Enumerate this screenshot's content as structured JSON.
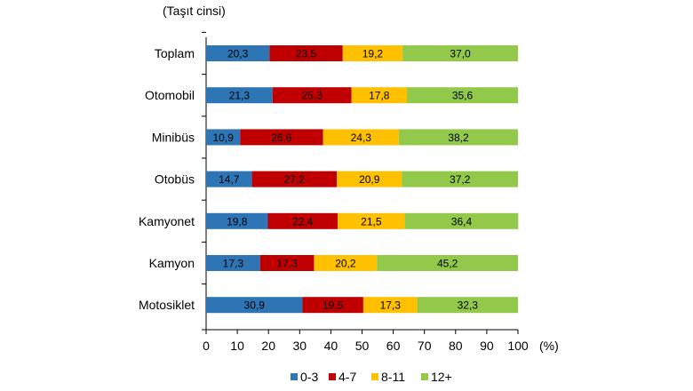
{
  "chart_data": {
    "type": "bar",
    "orientation": "horizontal",
    "stacked": true,
    "title": "",
    "ylabel": "(Taşıt cinsi)",
    "xunit": "(%)",
    "xlim": [
      0,
      100
    ],
    "xticks": [
      "0",
      "10",
      "20",
      "30",
      "40",
      "50",
      "60",
      "70",
      "80",
      "90",
      "100"
    ],
    "grid": false,
    "legend_position": "bottom",
    "categories": [
      "Toplam",
      "Otomobil",
      "Minibüs",
      "Otobüs",
      "Kamyonet",
      "Kamyon",
      "Motosiklet"
    ],
    "series": [
      {
        "name": "0-3",
        "color": "#2e75b6",
        "values": [
          20.3,
          21.3,
          10.9,
          14.7,
          19.8,
          17.3,
          30.9
        ],
        "labels": [
          "20,3",
          "21,3",
          "10,9",
          "14,7",
          "19,8",
          "17,3",
          "30,9"
        ]
      },
      {
        "name": "4-7",
        "color": "#c00000",
        "values": [
          23.5,
          25.3,
          26.6,
          27.2,
          22.4,
          17.3,
          19.5
        ],
        "labels": [
          "23,5",
          "25,3",
          "26,6",
          "27,2",
          "22,4",
          "17,3",
          "19,5"
        ]
      },
      {
        "name": "8-11",
        "color": "#ffc000",
        "values": [
          19.2,
          17.8,
          24.3,
          20.9,
          21.5,
          20.2,
          17.3
        ],
        "labels": [
          "19,2",
          "17,8",
          "24,3",
          "20,9",
          "21,5",
          "20,2",
          "17,3"
        ]
      },
      {
        "name": "12+",
        "color": "#92c94a",
        "values": [
          37.0,
          35.6,
          38.2,
          37.2,
          36.4,
          45.2,
          32.3
        ],
        "labels": [
          "37,0",
          "35,6",
          "38,2",
          "37,2",
          "36,4",
          "45,2",
          "32,3"
        ]
      }
    ]
  }
}
